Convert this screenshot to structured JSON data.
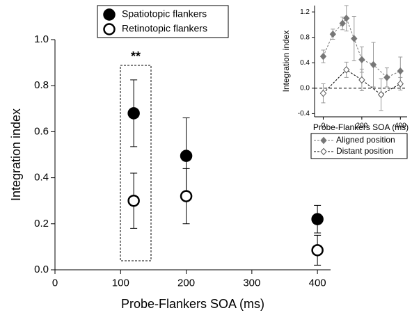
{
  "chart_data": [
    {
      "type": "scatter",
      "xlabel": "Probe-Flankers SOA (ms)",
      "ylabel": "Integration index",
      "annotation": "**",
      "xlim": [
        0,
        420
      ],
      "xticks": [
        0,
        100,
        200,
        300,
        400
      ],
      "ylim": [
        0,
        1.0
      ],
      "yticks": [
        {
          "value": 0,
          "label": "0.0"
        },
        0.2,
        0.4,
        0.6,
        0.8,
        {
          "value": 1,
          "label": "1.0"
        }
      ],
      "series": [
        {
          "name": "Spatiotopic flankers",
          "color": "#000000",
          "filled": true,
          "x": [
            120,
            200,
            400
          ],
          "values": [
            0.68,
            0.495,
            0.22
          ],
          "errors": [
            0.145,
            0.165,
            0.06
          ]
        },
        {
          "name": "Retinotopic flankers",
          "color": "#000000",
          "filled": false,
          "x": [
            120,
            200,
            400
          ],
          "values": [
            0.3,
            0.32,
            0.085
          ],
          "errors": [
            0.12,
            0.12,
            0.065
          ]
        }
      ]
    },
    {
      "type": "line",
      "xlabel": "Probe-Flankers SOA (ms)",
      "ylabel": "Integration index",
      "xlim": [
        -45,
        435
      ],
      "xticks": [
        0,
        200,
        400
      ],
      "ylim": [
        -0.45,
        1.3
      ],
      "yticks": [
        -0.4,
        {
          "value": 0,
          "label": "0.0"
        },
        0.4,
        0.8,
        1.2
      ],
      "series": [
        {
          "name": "Aligned position",
          "color": "#777777",
          "filled": true,
          "x": [
            0,
            50,
            100,
            120,
            160,
            200,
            260,
            330,
            400
          ],
          "values": [
            0.5,
            0.85,
            1.02,
            1.1,
            0.78,
            0.45,
            0.37,
            0.17,
            0.27
          ],
          "errors": [
            0.1,
            0.08,
            0.1,
            0.2,
            0.35,
            0.2,
            0.35,
            0.15,
            0.22
          ]
        },
        {
          "name": "Distant position",
          "color": "#555555",
          "filled": false,
          "x": [
            0,
            120,
            200,
            300,
            400
          ],
          "values": [
            -0.08,
            0.29,
            0.13,
            -0.1,
            0.07
          ],
          "errors": [
            0.15,
            0.12,
            0.17,
            0.25,
            0.1
          ]
        }
      ]
    }
  ]
}
